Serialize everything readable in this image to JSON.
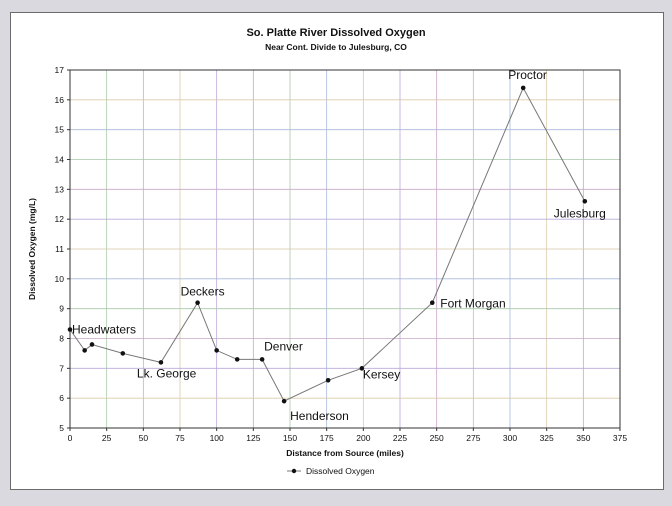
{
  "chart_data": {
    "type": "line",
    "title": "So. Platte River Dissolved Oxygen",
    "subtitle": "Near Cont. Divide to Julesburg, CO",
    "xlabel": "Distance from Source (miles)",
    "ylabel": "Dissolved Oxygen (mg/L)",
    "xlim": [
      0,
      375
    ],
    "ylim": [
      5,
      17
    ],
    "xticks": [
      "0",
      "25",
      "50",
      "75",
      "100",
      "125",
      "150",
      "175",
      "200",
      "225",
      "250",
      "275",
      "300",
      "325",
      "350",
      "375"
    ],
    "yticks": [
      "5",
      "6",
      "7",
      "8",
      "9",
      "10",
      "11",
      "12",
      "13",
      "14",
      "15",
      "16",
      "17"
    ],
    "grid": true,
    "legend_position": "bottom",
    "series": [
      {
        "name": "Dissolved Oxygen",
        "x": [
          0,
          10,
          15,
          36,
          62,
          87,
          100,
          114,
          131,
          146,
          176,
          199,
          247,
          309,
          351
        ],
        "y": [
          8.3,
          7.6,
          7.8,
          7.5,
          7.2,
          9.2,
          7.6,
          7.3,
          7.3,
          5.9,
          6.6,
          7.0,
          9.2,
          16.4,
          12.6
        ]
      }
    ],
    "annotations": [
      {
        "text": "Headwaters",
        "x": 0,
        "y": 8.3
      },
      {
        "text": "Lk. George",
        "x": 62,
        "y": 7.2
      },
      {
        "text": "Deckers",
        "x": 87,
        "y": 9.2
      },
      {
        "text": "Denver",
        "x": 131,
        "y": 7.3
      },
      {
        "text": "Henderson",
        "x": 146,
        "y": 5.9
      },
      {
        "text": "Kersey",
        "x": 199,
        "y": 7.0
      },
      {
        "text": "Fort Morgan",
        "x": 247,
        "y": 9.2
      },
      {
        "text": "Proctor",
        "x": 309,
        "y": 16.4
      },
      {
        "text": "Julesburg",
        "x": 351,
        "y": 12.6
      }
    ],
    "colors": {
      "line": "#777777",
      "marker": "#111111",
      "grid": [
        "#c9a7c9",
        "#a9c9a9",
        "#a9b9d9",
        "#d9c9a9",
        "#b9a9d9"
      ]
    }
  }
}
